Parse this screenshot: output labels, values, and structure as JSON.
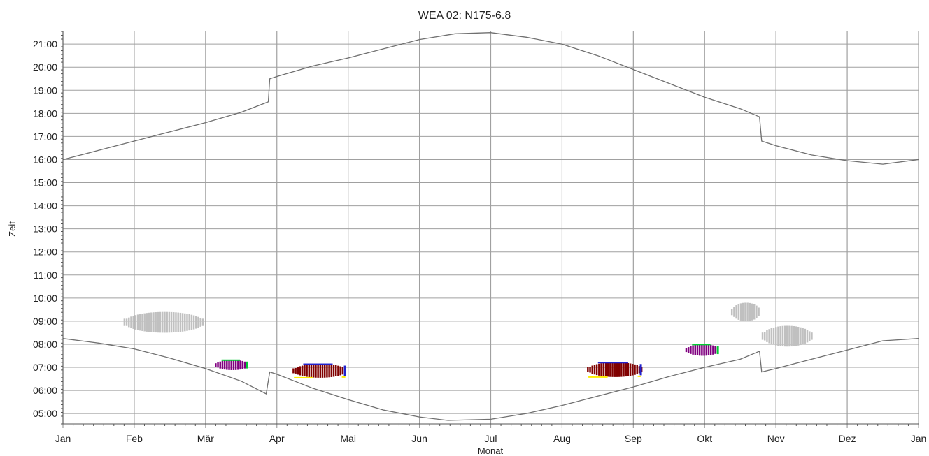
{
  "chart_data": {
    "type": "scatter",
    "title": "WEA 02: N175-6.8",
    "xlabel": "Monat",
    "ylabel": "Zeit",
    "x_ticks": [
      "Jan",
      "Feb",
      "Mär",
      "Apr",
      "Mai",
      "Jun",
      "Jul",
      "Aug",
      "Sep",
      "Okt",
      "Nov",
      "Dez",
      "Jan"
    ],
    "y_ticks": [
      "05:00",
      "06:00",
      "07:00",
      "08:00",
      "09:00",
      "10:00",
      "11:00",
      "12:00",
      "13:00",
      "14:00",
      "15:00",
      "16:00",
      "17:00",
      "18:00",
      "19:00",
      "20:00",
      "21:00"
    ],
    "xlim": [
      0,
      12
    ],
    "ylim": [
      4.55,
      21.55
    ],
    "grid": true,
    "colors": {
      "grid": "#a0a0a0",
      "sun_line": "#707070",
      "gray": "#c0c0c0",
      "purple": "#800080",
      "darkred": "#800000",
      "green": "#00cc33",
      "blue": "#2222cc",
      "yellow": "#ffee00"
    },
    "series": [
      {
        "kind": "line",
        "points": [
          [
            0.0,
            16.0
          ],
          [
            0.5,
            16.4
          ],
          [
            1.0,
            16.8
          ],
          [
            1.5,
            17.2
          ],
          [
            2.0,
            17.6
          ],
          [
            2.5,
            18.05
          ],
          [
            2.88,
            18.5
          ],
          [
            2.9,
            19.5
          ],
          [
            3.0,
            19.6
          ],
          [
            3.5,
            20.05
          ],
          [
            4.0,
            20.4
          ],
          [
            4.5,
            20.8
          ],
          [
            5.0,
            21.2
          ],
          [
            5.5,
            21.45
          ],
          [
            6.0,
            21.5
          ],
          [
            6.5,
            21.3
          ],
          [
            7.0,
            21.0
          ],
          [
            7.5,
            20.5
          ],
          [
            8.0,
            19.9
          ],
          [
            8.5,
            19.3
          ],
          [
            9.0,
            18.7
          ],
          [
            9.5,
            18.2
          ],
          [
            9.77,
            17.85
          ],
          [
            9.8,
            16.8
          ],
          [
            10.0,
            16.6
          ],
          [
            10.5,
            16.2
          ],
          [
            11.0,
            15.95
          ],
          [
            11.5,
            15.8
          ],
          [
            12.0,
            16.0
          ]
        ]
      },
      {
        "kind": "line",
        "points": [
          [
            0.0,
            8.25
          ],
          [
            0.5,
            8.05
          ],
          [
            1.0,
            7.8
          ],
          [
            1.5,
            7.4
          ],
          [
            2.0,
            6.95
          ],
          [
            2.5,
            6.4
          ],
          [
            2.85,
            5.85
          ],
          [
            2.9,
            6.8
          ],
          [
            3.0,
            6.7
          ],
          [
            3.5,
            6.1
          ],
          [
            4.0,
            5.6
          ],
          [
            4.5,
            5.15
          ],
          [
            5.0,
            4.85
          ],
          [
            5.4,
            4.7
          ],
          [
            6.0,
            4.75
          ],
          [
            6.5,
            5.0
          ],
          [
            7.0,
            5.35
          ],
          [
            7.5,
            5.75
          ],
          [
            8.0,
            6.15
          ],
          [
            8.5,
            6.6
          ],
          [
            9.0,
            7.0
          ],
          [
            9.5,
            7.35
          ],
          [
            9.77,
            7.7
          ],
          [
            9.8,
            6.8
          ],
          [
            10.0,
            6.95
          ],
          [
            10.5,
            7.35
          ],
          [
            11.0,
            7.75
          ],
          [
            11.5,
            8.15
          ],
          [
            12.0,
            8.25
          ]
        ]
      },
      {
        "kind": "cluster",
        "color": "gray",
        "x_range": [
          0.85,
          1.97
        ],
        "y_center": 8.95,
        "y_half": 0.45
      },
      {
        "kind": "cluster",
        "color": "gray",
        "x_range": [
          9.37,
          9.77
        ],
        "y_center": 9.4,
        "y_half": 0.4
      },
      {
        "kind": "cluster",
        "color": "gray",
        "x_range": [
          9.8,
          10.5
        ],
        "y_center": 8.35,
        "y_half": 0.45
      },
      {
        "kind": "cluster",
        "color": "purple",
        "x_range": [
          2.13,
          2.6
        ],
        "y_center": 7.1,
        "y_half": 0.22,
        "edge": "green"
      },
      {
        "kind": "cluster",
        "color": "darkred",
        "x_range": [
          3.22,
          3.97
        ],
        "y_center": 6.85,
        "y_half": 0.3,
        "edge": "blue",
        "edge2": "yellow"
      },
      {
        "kind": "cluster",
        "color": "darkred",
        "x_range": [
          7.35,
          8.12
        ],
        "y_center": 6.9,
        "y_half": 0.32,
        "edge": "blue",
        "edge2": "yellow"
      },
      {
        "kind": "cluster",
        "color": "purple",
        "x_range": [
          8.73,
          9.2
        ],
        "y_center": 7.75,
        "y_half": 0.25,
        "edge": "green"
      }
    ]
  }
}
